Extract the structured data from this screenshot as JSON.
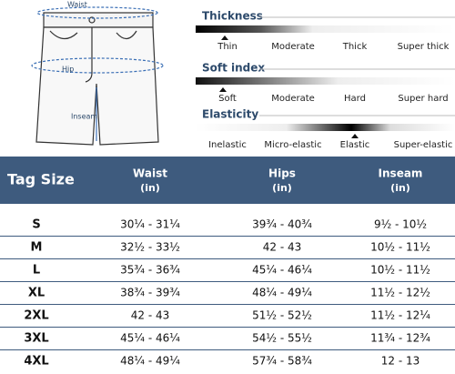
{
  "figure": {
    "labels": {
      "waist": "Waist",
      "hip": "Hip",
      "inseam": "Inseam"
    }
  },
  "scales": [
    {
      "title": "Thickness",
      "levels": [
        "Thin",
        "Moderate",
        "Thick",
        "Super thick"
      ]
    },
    {
      "title": "Soft index",
      "levels": [
        "Soft",
        "Moderate",
        "Hard",
        "Super hard"
      ]
    },
    {
      "title": "Elasticity",
      "levels": [
        "Inelastic",
        "Micro-elastic",
        "Elastic",
        "Super-elastic"
      ]
    }
  ],
  "table": {
    "columns": [
      {
        "name": "Tag Size"
      },
      {
        "name": "Waist",
        "unit": "(in)"
      },
      {
        "name": "Hips",
        "unit": "(in)"
      },
      {
        "name": "Inseam",
        "unit": "(in)"
      }
    ],
    "rows": [
      [
        "S",
        "30¼ - 31¼",
        "39¾ - 40¾",
        "9½ - 10½"
      ],
      [
        "M",
        "32½ - 33½",
        "42 - 43",
        "10½ - 11½"
      ],
      [
        "L",
        "35¾ - 36¾",
        "45¼ - 46¼",
        "10½ - 11½"
      ],
      [
        "XL",
        "38¾ - 39¾",
        "48¼ - 49¼",
        "11½ - 12½"
      ],
      [
        "2XL",
        "42 - 43",
        "51½ - 52½",
        "11½ - 12¼"
      ],
      [
        "3XL",
        "45¼ - 46¼",
        "54½ - 55½",
        "11¾ - 12¾"
      ],
      [
        "4XL",
        "48¼ - 49¼",
        "57¾ - 58¾",
        "12 - 13"
      ]
    ]
  }
}
